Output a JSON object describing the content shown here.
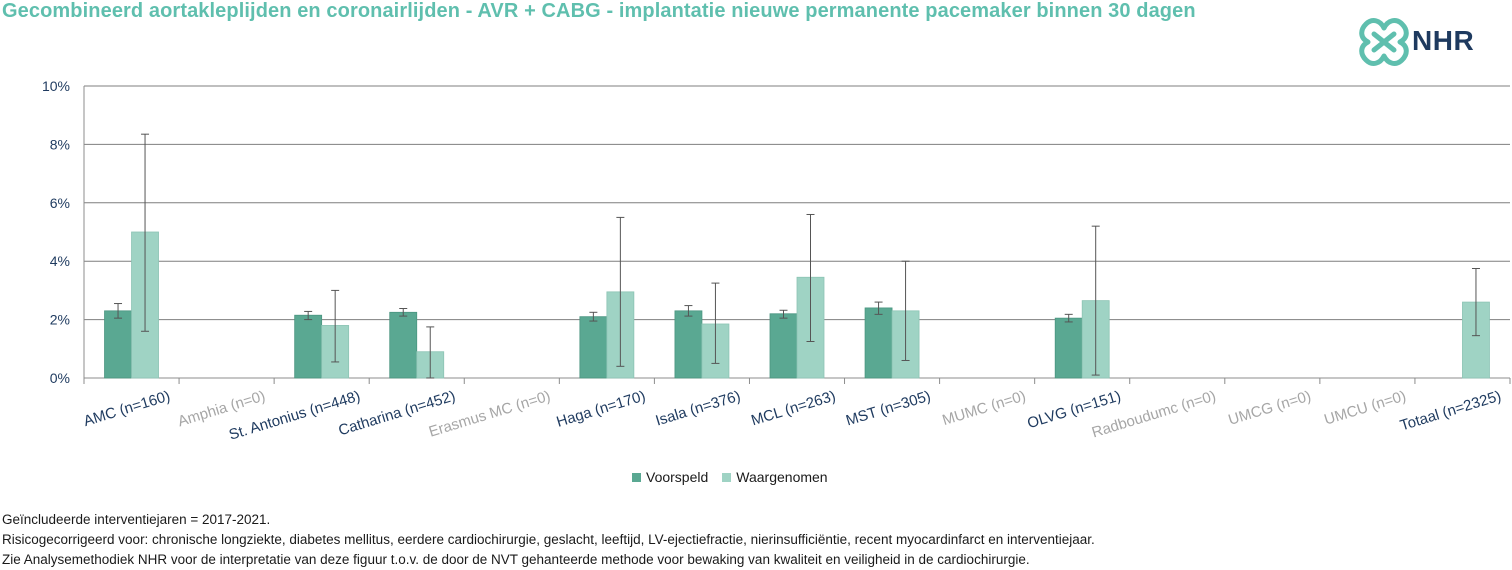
{
  "title": "Gecombineerd aortakleplijden en coronairlijden - AVR + CABG - implantatie nieuwe permanente pacemaker binnen 30 dagen",
  "logo": {
    "text": "NHR",
    "icon": "nhr-knot-icon"
  },
  "colors": {
    "voorspeld": "#5aa892",
    "waargenomen": "#9fd3c4",
    "title": "#5fbfae",
    "active_label": "#1e3a5f",
    "inactive_label": "#a6a6a6",
    "grid": "#7f7f7f"
  },
  "legend": {
    "voorspeld": "Voorspeld",
    "waargenomen": "Waargenomen"
  },
  "footer": {
    "line1": "Geïncludeerde interventiejaren = 2017-2021.",
    "line2": "Risicogecorrigeerd voor: chronische longziekte, diabetes mellitus, eerdere cardiochirurgie, geslacht, leeftijd, LV-ejectiefractie, nierinsufficiëntie, recent myocardinfarct en interventiejaar.",
    "line3": "Zie Analysemethodiek NHR voor de interpretatie van deze figuur t.o.v. de door de NVT gehanteerde methode voor bewaking van kwaliteit en veiligheid in de cardiochirurgie."
  },
  "chart_data": {
    "type": "bar",
    "title": "Gecombineerd aortakleplijden en coronairlijden - AVR + CABG - implantatie nieuwe permanente pacemaker binnen 30 dagen",
    "ylim": [
      0,
      10
    ],
    "yticks": [
      "0%",
      "2%",
      "4%",
      "6%",
      "8%",
      "10%"
    ],
    "grid": true,
    "legend_position": "bottom",
    "categories": [
      "AMC (n=160)",
      "Amphia (n=0)",
      "St. Antonius (n=448)",
      "Catharina (n=452)",
      "Erasmus MC (n=0)",
      "Haga (n=170)",
      "Isala (n=376)",
      "MCL (n=263)",
      "MST (n=305)",
      "MUMC (n=0)",
      "OLVG (n=151)",
      "Radboudumc (n=0)",
      "UMCG (n=0)",
      "UMCU (n=0)",
      "Totaal (n=2325)"
    ],
    "category_active": [
      true,
      false,
      true,
      true,
      false,
      true,
      true,
      true,
      true,
      false,
      true,
      false,
      false,
      false,
      true
    ],
    "series": [
      {
        "name": "Voorspeld",
        "values": [
          2.3,
          null,
          2.15,
          2.25,
          null,
          2.1,
          2.3,
          2.2,
          2.4,
          null,
          2.05,
          null,
          null,
          null,
          null
        ],
        "err_low": [
          2.05,
          null,
          2.0,
          2.12,
          null,
          1.95,
          2.12,
          2.05,
          2.18,
          null,
          1.92,
          null,
          null,
          null,
          null
        ],
        "err_high": [
          2.55,
          null,
          2.28,
          2.38,
          null,
          2.25,
          2.48,
          2.32,
          2.6,
          null,
          2.18,
          null,
          null,
          null,
          null
        ]
      },
      {
        "name": "Waargenomen",
        "values": [
          5.0,
          null,
          1.8,
          0.9,
          null,
          2.95,
          1.85,
          3.45,
          2.3,
          null,
          2.65,
          null,
          null,
          null,
          2.6
        ],
        "err_low": [
          1.6,
          null,
          0.55,
          0.0,
          null,
          0.4,
          0.5,
          1.25,
          0.6,
          null,
          0.1,
          null,
          null,
          null,
          1.45
        ],
        "err_high": [
          8.35,
          null,
          3.0,
          1.75,
          null,
          5.5,
          3.25,
          5.6,
          4.0,
          null,
          5.2,
          null,
          null,
          null,
          3.75
        ]
      }
    ]
  }
}
